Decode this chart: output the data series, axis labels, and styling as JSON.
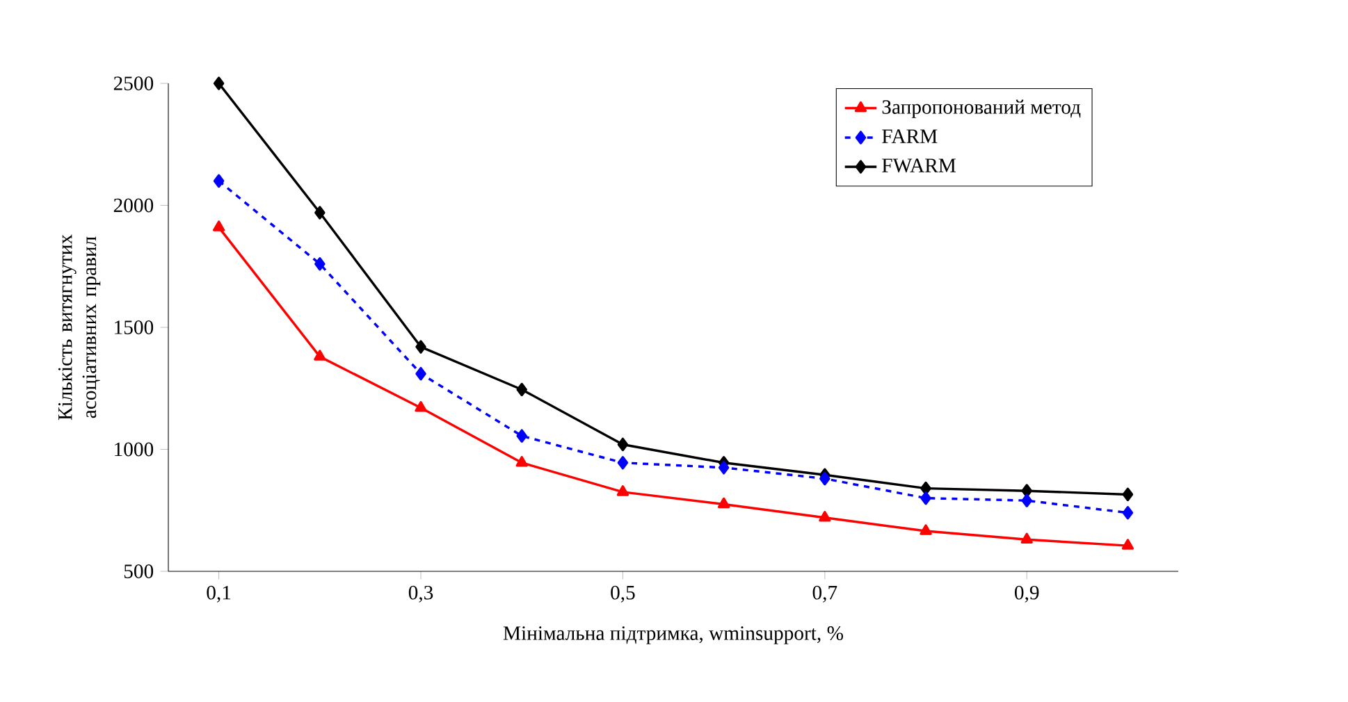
{
  "chart_data": {
    "type": "line",
    "xlabel": "Мінімальна підтримка, wminsupport, %",
    "ylabel": "Кількість витягнутих асоціативних правил",
    "x": [
      0.1,
      0.2,
      0.3,
      0.4,
      0.5,
      0.6,
      0.7,
      0.8,
      0.9,
      1.0
    ],
    "xlim": [
      0.05,
      1.05
    ],
    "xticks": [
      {
        "value": 0.1,
        "label": "0,1"
      },
      {
        "value": 0.3,
        "label": "0,3"
      },
      {
        "value": 0.5,
        "label": "0,5"
      },
      {
        "value": 0.7,
        "label": "0,7"
      },
      {
        "value": 0.9,
        "label": "0,9"
      }
    ],
    "ylim": [
      500,
      2500
    ],
    "yticks": [
      500,
      1000,
      1500,
      2000,
      2500
    ],
    "grid": false,
    "legend": "top right",
    "series": [
      {
        "name": "Запропонований метод",
        "color": "#ff0000",
        "marker": "triangle",
        "line_style": "solid",
        "values": [
          1910,
          1380,
          1170,
          945,
          825,
          775,
          720,
          665,
          630,
          605
        ]
      },
      {
        "name": "FARM",
        "color": "#0000ff",
        "marker": "diamond",
        "line_style": "dashed",
        "values": [
          2100,
          1760,
          1310,
          1055,
          945,
          925,
          880,
          800,
          790,
          740
        ]
      },
      {
        "name": "FWARM",
        "color": "#000000",
        "marker": "diamond",
        "line_style": "solid",
        "values": [
          2500,
          1970,
          1420,
          1245,
          1020,
          945,
          895,
          840,
          830,
          815
        ]
      }
    ]
  }
}
